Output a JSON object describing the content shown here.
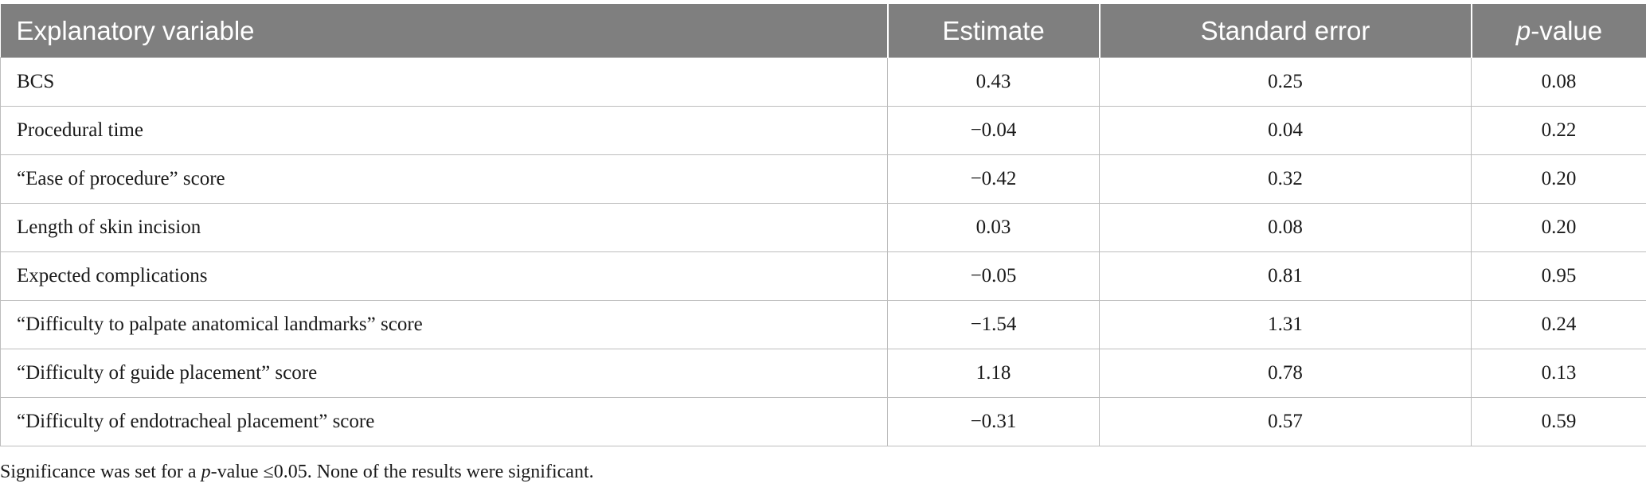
{
  "table": {
    "headers": {
      "variable": "Explanatory variable",
      "estimate": "Estimate",
      "standard_error": "Standard error",
      "p_italic": "p",
      "p_suffix": "-value"
    },
    "rows": [
      {
        "variable": "BCS",
        "estimate": "0.43",
        "standard_error": "0.25",
        "p_value": "0.08"
      },
      {
        "variable": "Procedural time",
        "estimate": "−0.04",
        "standard_error": "0.04",
        "p_value": "0.22"
      },
      {
        "variable": "“Ease of procedure” score",
        "estimate": "−0.42",
        "standard_error": "0.32",
        "p_value": "0.20"
      },
      {
        "variable": "Length of skin incision",
        "estimate": "0.03",
        "standard_error": "0.08",
        "p_value": "0.20"
      },
      {
        "variable": "Expected complications",
        "estimate": "−0.05",
        "standard_error": "0.81",
        "p_value": "0.95"
      },
      {
        "variable": "“Difficulty to palpate anatomical landmarks” score",
        "estimate": "−1.54",
        "standard_error": "1.31",
        "p_value": "0.24"
      },
      {
        "variable": "“Difficulty of guide placement” score",
        "estimate": "1.18",
        "standard_error": "0.78",
        "p_value": "0.13"
      },
      {
        "variable": "“Difficulty of endotracheal placement” score",
        "estimate": "−0.31",
        "standard_error": "0.57",
        "p_value": "0.59"
      }
    ]
  },
  "footnote": {
    "before": "Significance was set for a ",
    "italic": "p",
    "after": "-value ≤0.05. None of the results were significant."
  },
  "colors": {
    "header_bg": "#7f7f7f",
    "header_text": "#ffffff",
    "grid": "#bdbdbd"
  }
}
